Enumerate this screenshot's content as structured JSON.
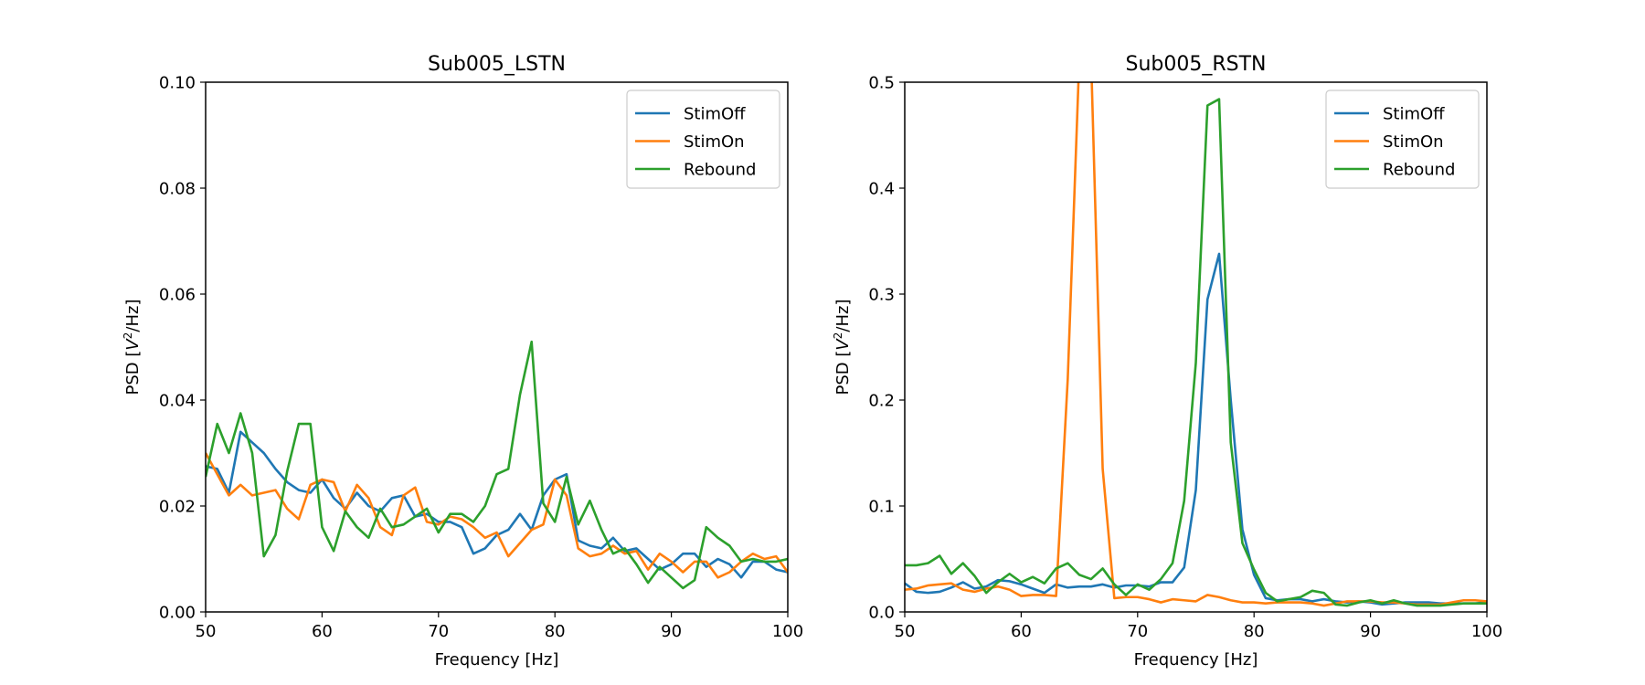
{
  "figure": {
    "background": "#ffffff"
  },
  "colors": {
    "StimOff": "#1f77b4",
    "StimOn": "#ff7f0e",
    "Rebound": "#2ca02c"
  },
  "chart_data": [
    {
      "type": "line",
      "title": "Sub005_LSTN",
      "xlabel": "Frequency [Hz]",
      "ylabel": "PSD [V²/Hz]",
      "xlim": [
        50,
        100
      ],
      "ylim": [
        0,
        0.1
      ],
      "xticks": [
        50,
        60,
        70,
        80,
        90,
        100
      ],
      "xtick_labels": [
        "50",
        "60",
        "70",
        "80",
        "90",
        "100"
      ],
      "yticks": [
        0,
        0.02,
        0.04,
        0.06,
        0.08,
        0.1
      ],
      "ytick_labels": [
        "0.00",
        "0.02",
        "0.04",
        "0.06",
        "0.08",
        "0.10"
      ],
      "legend": "top-right",
      "x": [
        50,
        51,
        52,
        53,
        54,
        55,
        56,
        57,
        58,
        59,
        60,
        61,
        62,
        63,
        64,
        65,
        66,
        67,
        68,
        69,
        70,
        71,
        72,
        73,
        74,
        75,
        76,
        77,
        78,
        79,
        80,
        81,
        82,
        83,
        84,
        85,
        86,
        87,
        88,
        89,
        90,
        91,
        92,
        93,
        94,
        95,
        96,
        97,
        98,
        99,
        100
      ],
      "series": [
        {
          "name": "StimOff",
          "values": [
            0.0275,
            0.027,
            0.0225,
            0.034,
            0.032,
            0.03,
            0.027,
            0.0245,
            0.023,
            0.0225,
            0.025,
            0.0215,
            0.0195,
            0.0225,
            0.02,
            0.019,
            0.0215,
            0.022,
            0.018,
            0.0185,
            0.017,
            0.017,
            0.016,
            0.011,
            0.012,
            0.0145,
            0.0155,
            0.0185,
            0.0155,
            0.022,
            0.025,
            0.026,
            0.0135,
            0.0125,
            0.012,
            0.014,
            0.0115,
            0.012,
            0.01,
            0.008,
            0.009,
            0.011,
            0.011,
            0.0085,
            0.01,
            0.009,
            0.0065,
            0.0095,
            0.0095,
            0.008,
            0.0075
          ]
        },
        {
          "name": "StimOn",
          "values": [
            0.03,
            0.026,
            0.022,
            0.024,
            0.022,
            0.0225,
            0.023,
            0.0195,
            0.0175,
            0.024,
            0.025,
            0.0245,
            0.019,
            0.024,
            0.0215,
            0.016,
            0.0145,
            0.022,
            0.0235,
            0.017,
            0.0165,
            0.018,
            0.0175,
            0.016,
            0.014,
            0.015,
            0.0105,
            0.013,
            0.0155,
            0.0165,
            0.025,
            0.022,
            0.012,
            0.0105,
            0.011,
            0.0125,
            0.011,
            0.0115,
            0.008,
            0.011,
            0.0095,
            0.0075,
            0.0095,
            0.0095,
            0.0065,
            0.0075,
            0.0095,
            0.011,
            0.01,
            0.0105,
            0.0075
          ]
        },
        {
          "name": "Rebound",
          "values": [
            0.0255,
            0.0355,
            0.03,
            0.0375,
            0.03,
            0.0105,
            0.0145,
            0.0265,
            0.0355,
            0.0355,
            0.016,
            0.0115,
            0.019,
            0.016,
            0.014,
            0.0195,
            0.016,
            0.0165,
            0.018,
            0.0195,
            0.015,
            0.0185,
            0.0185,
            0.017,
            0.02,
            0.026,
            0.027,
            0.041,
            0.051,
            0.0205,
            0.017,
            0.0255,
            0.0165,
            0.021,
            0.0155,
            0.011,
            0.012,
            0.009,
            0.0055,
            0.0085,
            0.0065,
            0.0045,
            0.006,
            0.016,
            0.014,
            0.0125,
            0.0095,
            0.01,
            0.0095,
            0.0095,
            0.01
          ]
        }
      ]
    },
    {
      "type": "line",
      "title": "Sub005_RSTN",
      "xlabel": "Frequency [Hz]",
      "ylabel": "PSD [V²/Hz]",
      "xlim": [
        50,
        100
      ],
      "ylim": [
        0,
        0.5
      ],
      "xticks": [
        50,
        60,
        70,
        80,
        90,
        100
      ],
      "xtick_labels": [
        "50",
        "60",
        "70",
        "80",
        "90",
        "100"
      ],
      "yticks": [
        0,
        0.1,
        0.2,
        0.3,
        0.4,
        0.5
      ],
      "ytick_labels": [
        "0.0",
        "0.1",
        "0.2",
        "0.3",
        "0.4",
        "0.5"
      ],
      "legend": "top-right",
      "x": [
        50,
        51,
        52,
        53,
        54,
        55,
        56,
        57,
        58,
        59,
        60,
        61,
        62,
        63,
        64,
        65,
        66,
        67,
        68,
        69,
        70,
        71,
        72,
        73,
        74,
        75,
        76,
        77,
        78,
        79,
        80,
        81,
        82,
        83,
        84,
        85,
        86,
        87,
        88,
        89,
        90,
        91,
        92,
        93,
        94,
        95,
        96,
        97,
        98,
        99,
        100
      ],
      "series": [
        {
          "name": "StimOff",
          "values": [
            0.027,
            0.019,
            0.018,
            0.019,
            0.023,
            0.028,
            0.022,
            0.024,
            0.03,
            0.029,
            0.026,
            0.022,
            0.018,
            0.026,
            0.023,
            0.024,
            0.024,
            0.026,
            0.023,
            0.025,
            0.025,
            0.024,
            0.028,
            0.028,
            0.042,
            0.115,
            0.295,
            0.338,
            0.2,
            0.078,
            0.035,
            0.013,
            0.011,
            0.012,
            0.012,
            0.01,
            0.012,
            0.01,
            0.009,
            0.01,
            0.009,
            0.007,
            0.008,
            0.009,
            0.009,
            0.009,
            0.008,
            0.008,
            0.008,
            0.008,
            0.009
          ]
        },
        {
          "name": "StimOn",
          "values": [
            0.021,
            0.022,
            0.025,
            0.026,
            0.027,
            0.021,
            0.019,
            0.022,
            0.024,
            0.021,
            0.015,
            0.016,
            0.016,
            0.015,
            0.22,
            0.525,
            0.525,
            0.135,
            0.013,
            0.014,
            0.014,
            0.012,
            0.009,
            0.012,
            0.011,
            0.01,
            0.016,
            0.014,
            0.011,
            0.009,
            0.009,
            0.008,
            0.009,
            0.009,
            0.009,
            0.008,
            0.006,
            0.008,
            0.01,
            0.01,
            0.01,
            0.009,
            0.009,
            0.008,
            0.007,
            0.007,
            0.007,
            0.009,
            0.011,
            0.011,
            0.01
          ]
        },
        {
          "name": "Rebound",
          "values": [
            0.044,
            0.044,
            0.046,
            0.053,
            0.036,
            0.046,
            0.034,
            0.018,
            0.028,
            0.036,
            0.028,
            0.033,
            0.027,
            0.041,
            0.046,
            0.035,
            0.031,
            0.041,
            0.026,
            0.016,
            0.026,
            0.021,
            0.031,
            0.046,
            0.105,
            0.235,
            0.478,
            0.484,
            0.16,
            0.065,
            0.04,
            0.018,
            0.01,
            0.012,
            0.014,
            0.02,
            0.018,
            0.007,
            0.006,
            0.009,
            0.011,
            0.008,
            0.011,
            0.008,
            0.006,
            0.006,
            0.006,
            0.007,
            0.008,
            0.008,
            0.008
          ]
        }
      ]
    }
  ]
}
